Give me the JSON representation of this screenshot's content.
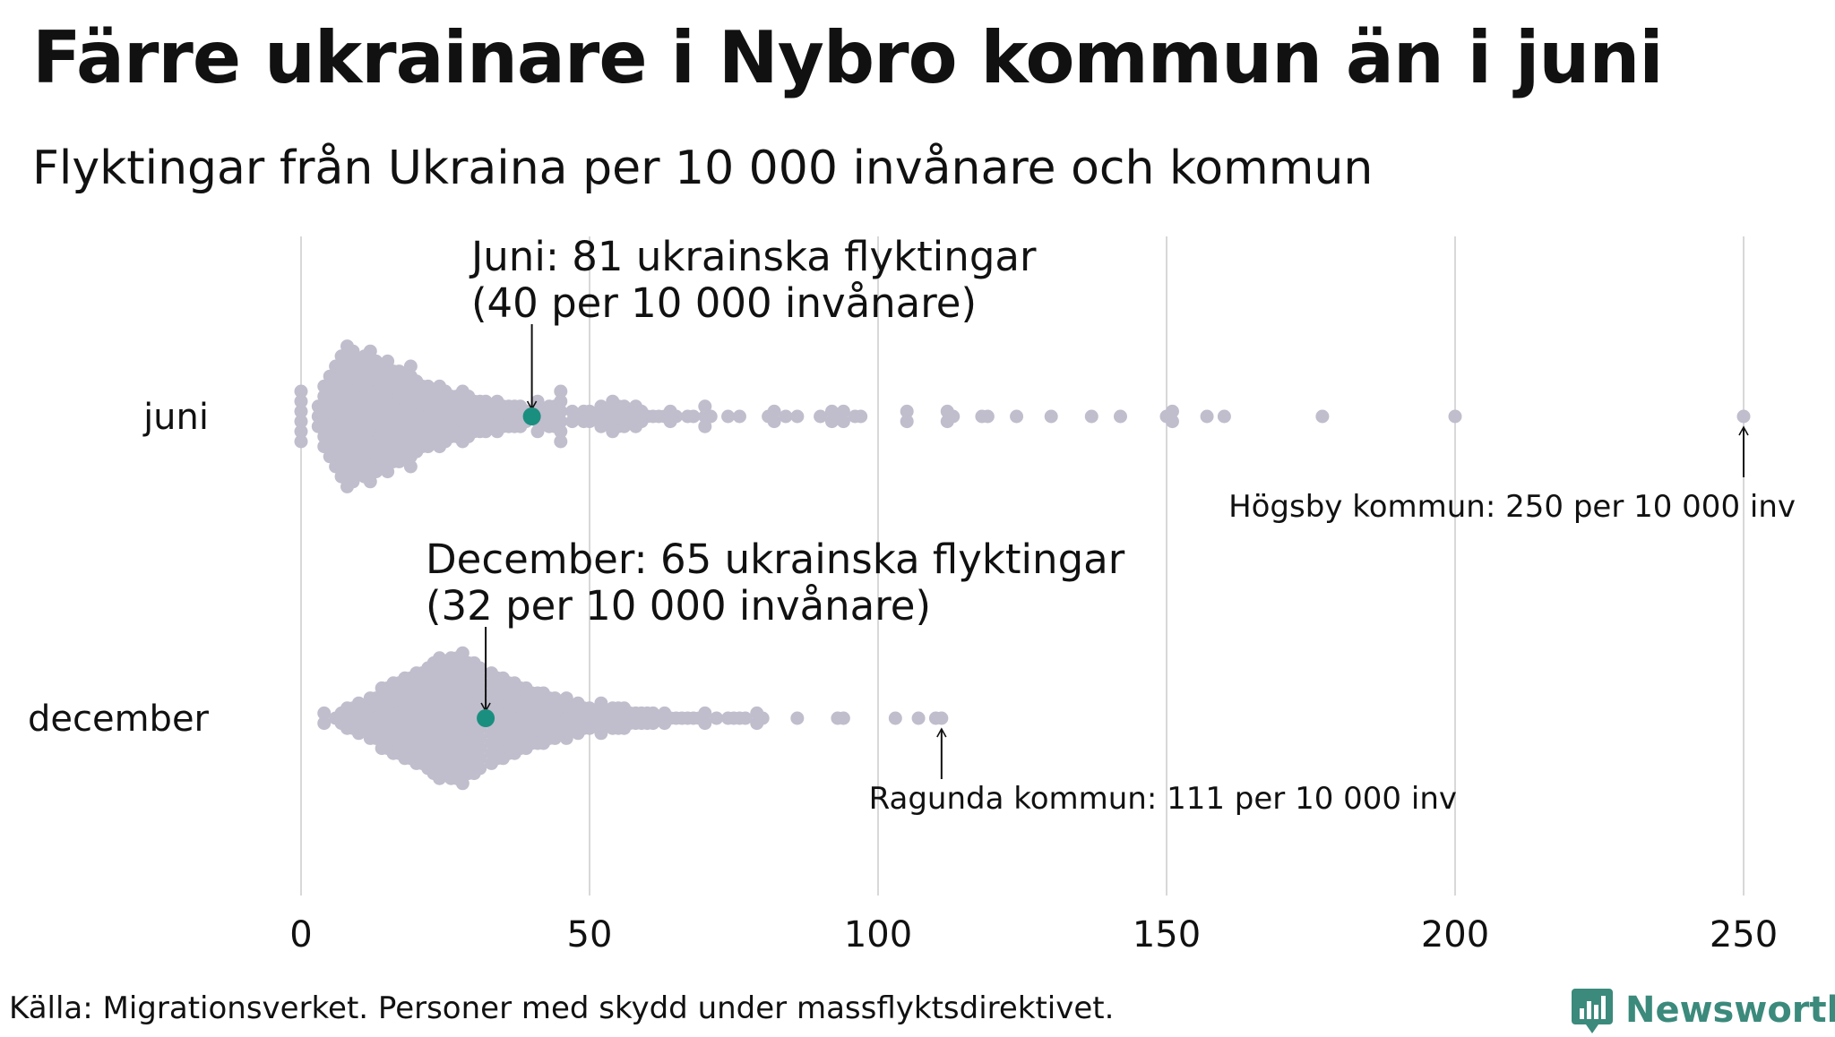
{
  "header": {
    "title": "Färre ukrainare i Nybro kommun än i juni",
    "subtitle": "Flyktingar från Ukraina per 10 000 invånare och kommun"
  },
  "footer": {
    "source": "Källa: Migrationsverket. Personer med skydd under massflyktsdirektivet.",
    "brand": "Newsworthy"
  },
  "colors": {
    "dot": "#c0bdcc",
    "highlight": "#1a8f7f",
    "grid": "#cccccc",
    "brand": "#3b8a7c"
  },
  "chart_data": {
    "type": "beeswarm",
    "xlim": [
      0,
      250
    ],
    "xticks": [
      0,
      50,
      100,
      150,
      200,
      250
    ],
    "grid": true,
    "categories": [
      "juni",
      "december"
    ],
    "highlight": [
      {
        "category": "juni",
        "value": 40,
        "label_line1": "Juni: 81 ukrainska flyktingar",
        "label_line2": "(40 per 10 000 invånare)"
      },
      {
        "category": "december",
        "value": 32,
        "label_line1": "December: 65 ukrainska flyktingar",
        "label_line2": "(32 per 10 000 invånare)"
      }
    ],
    "annotations": [
      {
        "category": "juni",
        "value": 250,
        "label": "Högsby kommun: 250 per 10 000 inv"
      },
      {
        "category": "december",
        "value": 111,
        "label": "Ragunda kommun: 111 per 10 000 inv"
      }
    ],
    "series": [
      {
        "name": "juni",
        "bins": [
          [
            0,
            6
          ],
          [
            3,
            3
          ],
          [
            4,
            7
          ],
          [
            5,
            9
          ],
          [
            6,
            11
          ],
          [
            7,
            13
          ],
          [
            8,
            15
          ],
          [
            9,
            14
          ],
          [
            10,
            12
          ],
          [
            11,
            13
          ],
          [
            12,
            14
          ],
          [
            13,
            12
          ],
          [
            14,
            11
          ],
          [
            15,
            12
          ],
          [
            16,
            10
          ],
          [
            17,
            10
          ],
          [
            18,
            9
          ],
          [
            19,
            11
          ],
          [
            20,
            8
          ],
          [
            21,
            7
          ],
          [
            22,
            7
          ],
          [
            23,
            6
          ],
          [
            24,
            7
          ],
          [
            25,
            6
          ],
          [
            26,
            5
          ],
          [
            27,
            5
          ],
          [
            28,
            6
          ],
          [
            29,
            5
          ],
          [
            30,
            4
          ],
          [
            31,
            4
          ],
          [
            32,
            4
          ],
          [
            33,
            3
          ],
          [
            34,
            4
          ],
          [
            35,
            3
          ],
          [
            36,
            3
          ],
          [
            37,
            3
          ],
          [
            38,
            3
          ],
          [
            39,
            2
          ],
          [
            41,
            4
          ],
          [
            42,
            2
          ],
          [
            43,
            3
          ],
          [
            44,
            3
          ],
          [
            45,
            6
          ],
          [
            47,
            2
          ],
          [
            48,
            1
          ],
          [
            49,
            2
          ],
          [
            50,
            2
          ],
          [
            51,
            1
          ],
          [
            52,
            3
          ],
          [
            53,
            2
          ],
          [
            54,
            4
          ],
          [
            55,
            3
          ],
          [
            56,
            3
          ],
          [
            57,
            2
          ],
          [
            58,
            3
          ],
          [
            59,
            2
          ],
          [
            60,
            1
          ],
          [
            61,
            1
          ],
          [
            62,
            1
          ],
          [
            63,
            1
          ],
          [
            64,
            2
          ],
          [
            65,
            1
          ],
          [
            67,
            1
          ],
          [
            68,
            1
          ],
          [
            70,
            3
          ],
          [
            71,
            1
          ],
          [
            74,
            1
          ],
          [
            76,
            1
          ],
          [
            81,
            1
          ],
          [
            82,
            2
          ],
          [
            84,
            1
          ],
          [
            86,
            1
          ],
          [
            90,
            1
          ],
          [
            92,
            2
          ],
          [
            93,
            1
          ],
          [
            94,
            2
          ],
          [
            96,
            1
          ],
          [
            97,
            1
          ],
          [
            105,
            2
          ],
          [
            112,
            2
          ],
          [
            113,
            1
          ],
          [
            118,
            1
          ],
          [
            119,
            1
          ],
          [
            124,
            1
          ],
          [
            130,
            1
          ],
          [
            137,
            1
          ],
          [
            142,
            1
          ],
          [
            150,
            1
          ],
          [
            151,
            2
          ],
          [
            157,
            1
          ],
          [
            160,
            1
          ],
          [
            177,
            1
          ],
          [
            200,
            1
          ],
          [
            250,
            1
          ]
        ]
      },
      {
        "name": "december",
        "bins": [
          [
            4,
            2
          ],
          [
            6,
            1
          ],
          [
            7,
            2
          ],
          [
            8,
            3
          ],
          [
            9,
            3
          ],
          [
            10,
            4
          ],
          [
            11,
            3
          ],
          [
            12,
            5
          ],
          [
            13,
            5
          ],
          [
            14,
            7
          ],
          [
            15,
            7
          ],
          [
            16,
            8
          ],
          [
            17,
            8
          ],
          [
            18,
            9
          ],
          [
            19,
            9
          ],
          [
            20,
            10
          ],
          [
            21,
            10
          ],
          [
            22,
            11
          ],
          [
            23,
            12
          ],
          [
            24,
            13
          ],
          [
            25,
            12
          ],
          [
            26,
            13
          ],
          [
            27,
            13
          ],
          [
            28,
            14
          ],
          [
            29,
            12
          ],
          [
            30,
            12
          ],
          [
            31,
            11
          ],
          [
            33,
            10
          ],
          [
            34,
            9
          ],
          [
            35,
            9
          ],
          [
            36,
            8
          ],
          [
            37,
            8
          ],
          [
            38,
            7
          ],
          [
            39,
            7
          ],
          [
            40,
            6
          ],
          [
            41,
            6
          ],
          [
            42,
            6
          ],
          [
            43,
            5
          ],
          [
            44,
            5
          ],
          [
            45,
            4
          ],
          [
            46,
            5
          ],
          [
            47,
            3
          ],
          [
            48,
            4
          ],
          [
            49,
            3
          ],
          [
            50,
            3
          ],
          [
            51,
            2
          ],
          [
            52,
            4
          ],
          [
            53,
            2
          ],
          [
            54,
            3
          ],
          [
            55,
            3
          ],
          [
            56,
            3
          ],
          [
            57,
            2
          ],
          [
            58,
            2
          ],
          [
            59,
            2
          ],
          [
            60,
            2
          ],
          [
            61,
            2
          ],
          [
            62,
            1
          ],
          [
            63,
            2
          ],
          [
            64,
            1
          ],
          [
            65,
            1
          ],
          [
            66,
            1
          ],
          [
            67,
            1
          ],
          [
            68,
            1
          ],
          [
            69,
            1
          ],
          [
            70,
            2
          ],
          [
            72,
            1
          ],
          [
            74,
            1
          ],
          [
            75,
            1
          ],
          [
            76,
            1
          ],
          [
            77,
            1
          ],
          [
            79,
            2
          ],
          [
            80,
            1
          ],
          [
            86,
            1
          ],
          [
            93,
            1
          ],
          [
            94,
            1
          ],
          [
            103,
            1
          ],
          [
            107,
            1
          ],
          [
            110,
            1
          ],
          [
            111,
            1
          ]
        ]
      }
    ]
  }
}
